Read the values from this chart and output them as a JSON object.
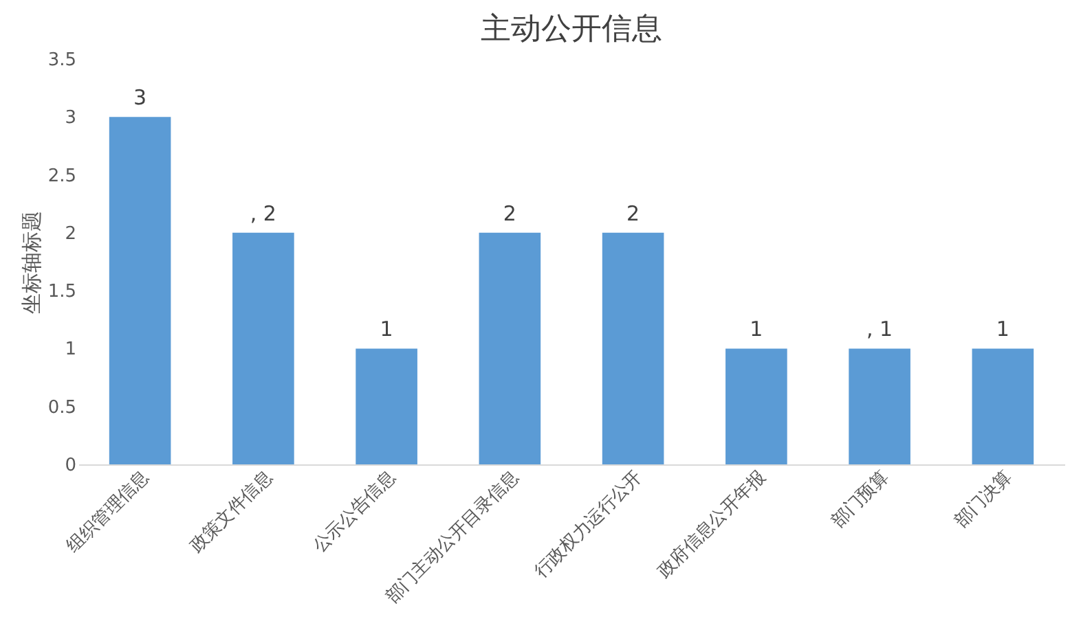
{
  "chart_data": {
    "type": "bar",
    "title": "主动公开信息",
    "ylabel": "坐标轴标题",
    "categories": [
      "组织管理信息",
      "政策文件信息",
      "公示公告信息",
      "部门主动公开目录信息",
      "行政权力运行公开",
      "政府信息公开年报",
      "部门预算",
      "部门决算"
    ],
    "values": [
      3,
      2,
      1,
      2,
      2,
      1,
      1,
      1
    ],
    "value_labels": [
      "3",
      ", 2",
      "1",
      "2",
      "2",
      "1",
      ", 1",
      "1"
    ],
    "color": "#5b9bd5",
    "ylim": [
      0,
      3.5
    ],
    "yticks": [
      0,
      0.5,
      1,
      1.5,
      2,
      2.5,
      3,
      3.5
    ],
    "grid": false
  }
}
